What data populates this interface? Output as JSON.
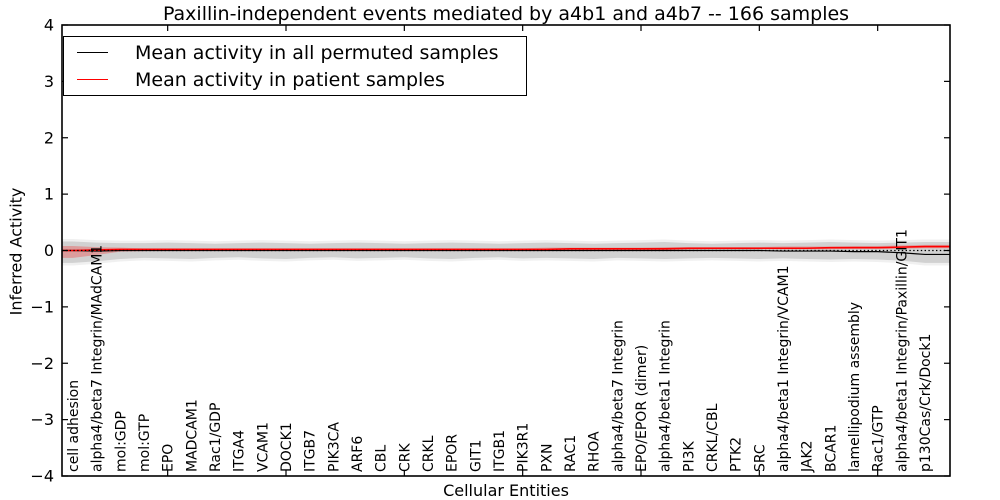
{
  "accent_colors": {
    "permuted": "#000000",
    "patient": "#ff0000",
    "permuted_band": "#999999",
    "patient_band": "#ff0000"
  },
  "chart_data": {
    "type": "line",
    "title": "Paxillin-independent events mediated by a4b1 and a4b7 -- 166 samples",
    "xlabel": "Cellular Entities",
    "ylabel": "Inferred Activity",
    "ylim": [
      -4,
      4
    ],
    "ytick_labels": [
      "4",
      "3",
      "2",
      "1",
      "0",
      "−1",
      "−2",
      "−3",
      "−4"
    ],
    "ytick_values": [
      4,
      3,
      2,
      1,
      0,
      -1,
      -2,
      -3,
      -4
    ],
    "grid": false,
    "tick_direction": "in",
    "xtick_mark_indices": [
      4,
      9,
      14,
      19,
      24,
      29,
      34
    ],
    "categories": [
      "cell adhesion",
      "alpha4/beta7 Integrin/MAdCAM1",
      "mol:GDP",
      "mol:GTP",
      "EPO",
      "MADCAM1",
      "Rac1/GDP",
      "ITGA4",
      "VCAM1",
      "DOCK1",
      "ITGB7",
      "PIK3CA",
      "ARF6",
      "CBL",
      "CRK",
      "CRKL",
      "EPOR",
      "GIT1",
      "ITGB1",
      "PIK3R1",
      "PXN",
      "RAC1",
      "RHOA",
      "alpha4/beta7 Integrin",
      "EPO/EPOR (dimer)",
      "alpha4/beta1 Integrin",
      "PI3K",
      "CRKL/CBL",
      "PTK2",
      "SRC",
      "alpha4/beta1 Integrin/VCAM1",
      "JAK2",
      "BCAR1",
      "lamellipodium assembly",
      "Rac1/GTP",
      "alpha4/beta1 Integrin/Paxillin/GIT1",
      "p130Cas/Crk/Dock1"
    ],
    "series": [
      {
        "name": "Mean activity in all permuted samples",
        "color": "#000000",
        "values": [
          0.0,
          -0.01,
          0.0,
          0.0,
          0.0,
          0.0,
          0.0,
          0.0,
          0.0,
          0.0,
          0.0,
          0.0,
          0.0,
          0.0,
          0.0,
          0.0,
          0.0,
          0.0,
          0.0,
          0.0,
          0.0,
          0.0,
          0.0,
          0.0,
          0.0,
          0.0,
          0.0,
          0.0,
          0.0,
          0.0,
          -0.01,
          -0.01,
          -0.01,
          -0.02,
          -0.02,
          -0.04,
          -0.07
        ]
      },
      {
        "name": "Mean activity in patient samples",
        "color": "#ff0000",
        "values": [
          0.0,
          0.01,
          0.02,
          0.02,
          0.02,
          0.02,
          0.02,
          0.02,
          0.02,
          0.02,
          0.02,
          0.02,
          0.02,
          0.02,
          0.02,
          0.02,
          0.02,
          0.02,
          0.02,
          0.02,
          0.02,
          0.03,
          0.03,
          0.03,
          0.03,
          0.03,
          0.04,
          0.04,
          0.04,
          0.04,
          0.04,
          0.04,
          0.05,
          0.05,
          0.05,
          0.06,
          0.07
        ]
      }
    ],
    "bands": [
      {
        "name": "permuted-std-band",
        "color": "#999999",
        "opacity": 0.35,
        "halo_opacity": 0.15,
        "halo_pad": 0.045,
        "upper": [
          0.16,
          0.14,
          0.13,
          0.13,
          0.14,
          0.13,
          0.12,
          0.13,
          0.14,
          0.13,
          0.12,
          0.13,
          0.14,
          0.13,
          0.12,
          0.13,
          0.14,
          0.13,
          0.12,
          0.13,
          0.14,
          0.13,
          0.12,
          0.13,
          0.14,
          0.15,
          0.13,
          0.12,
          0.13,
          0.14,
          0.13,
          0.14,
          0.15,
          0.14,
          0.13,
          0.14,
          0.15
        ],
        "lower": [
          -0.22,
          -0.19,
          -0.15,
          -0.13,
          -0.14,
          -0.15,
          -0.13,
          -0.12,
          -0.14,
          -0.15,
          -0.13,
          -0.12,
          -0.14,
          -0.13,
          -0.12,
          -0.14,
          -0.15,
          -0.13,
          -0.12,
          -0.14,
          -0.13,
          -0.14,
          -0.15,
          -0.13,
          -0.14,
          -0.15,
          -0.14,
          -0.13,
          -0.14,
          -0.15,
          -0.14,
          -0.15,
          -0.16,
          -0.15,
          -0.16,
          -0.18,
          -0.22
        ]
      },
      {
        "name": "patient-std-band",
        "color": "#ff0000",
        "opacity": 0.25,
        "halo_opacity": 0,
        "halo_pad": 0,
        "upper": [
          0.08,
          0.06,
          0.05,
          0.04,
          0.04,
          0.04,
          0.04,
          0.04,
          0.04,
          0.04,
          0.04,
          0.04,
          0.04,
          0.04,
          0.04,
          0.04,
          0.04,
          0.04,
          0.04,
          0.04,
          0.05,
          0.05,
          0.05,
          0.05,
          0.05,
          0.06,
          0.06,
          0.06,
          0.06,
          0.06,
          0.07,
          0.07,
          0.07,
          0.08,
          0.08,
          0.09,
          0.1
        ],
        "lower": [
          -0.13,
          -0.08,
          -0.02,
          -0.01,
          0.0,
          0.0,
          0.0,
          0.0,
          0.0,
          0.0,
          0.0,
          0.0,
          0.0,
          0.0,
          0.0,
          0.0,
          0.0,
          0.0,
          0.0,
          0.0,
          0.0,
          0.01,
          0.01,
          0.01,
          0.01,
          0.01,
          0.01,
          0.02,
          0.02,
          0.02,
          0.02,
          0.02,
          0.02,
          0.03,
          0.03,
          0.03,
          0.04
        ]
      }
    ],
    "zero_line": {
      "value": 0,
      "color": "#000000",
      "style": "dotted"
    },
    "legend": {
      "position": "upper-left",
      "entries": [
        {
          "label": "Mean activity in all permuted samples",
          "color": "#000000"
        },
        {
          "label": "Mean activity in patient samples",
          "color": "#ff0000"
        }
      ]
    }
  }
}
